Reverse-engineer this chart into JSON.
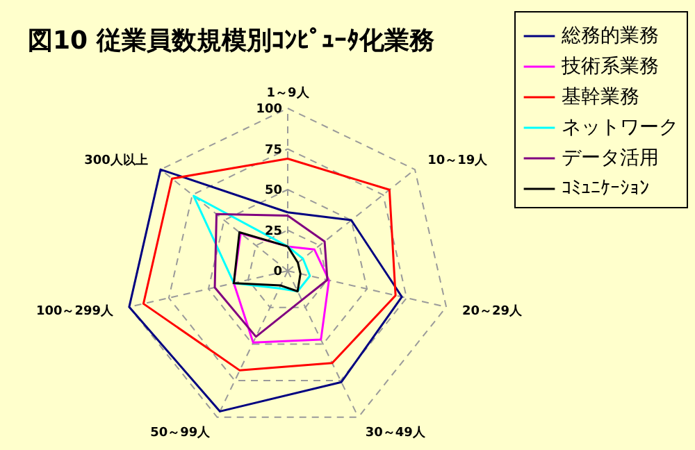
{
  "chart_data": {
    "type": "radar",
    "title": "図10 従業員数規模別ｺﾝﾋﾟｭｰﾀ化業務",
    "categories": [
      "1～9人",
      "10～19人",
      "20～29人",
      "30～49人",
      "50～99人",
      "100～299人",
      "300人以上"
    ],
    "series": [
      {
        "name": "総務的業務",
        "color": "#000080",
        "values": [
          36,
          50,
          72,
          76,
          96,
          100,
          100
        ]
      },
      {
        "name": "技術系業務",
        "color": "#ff00ff",
        "values": [
          15,
          21,
          26,
          47,
          49,
          34,
          37
        ]
      },
      {
        "name": "基幹業務",
        "color": "#ff0000",
        "values": [
          69,
          80,
          68,
          63,
          68,
          91,
          91
        ]
      },
      {
        "name": "ネットワーク",
        "color": "#00ffff",
        "values": [
          15,
          12,
          14,
          14,
          12,
          34,
          74
        ]
      },
      {
        "name": "データ活用",
        "color": "#800080",
        "values": [
          34,
          29,
          25,
          20,
          45,
          46,
          56
        ]
      },
      {
        "name": "ｺﾐｭﾆｹｰｼｮﾝ",
        "color": "#000000",
        "values": [
          15,
          8,
          8,
          14,
          10,
          34,
          38
        ]
      }
    ],
    "ylim": [
      0,
      100
    ],
    "yticks": [
      0,
      25,
      50,
      75,
      100
    ],
    "grid": true,
    "legend": "top right"
  }
}
